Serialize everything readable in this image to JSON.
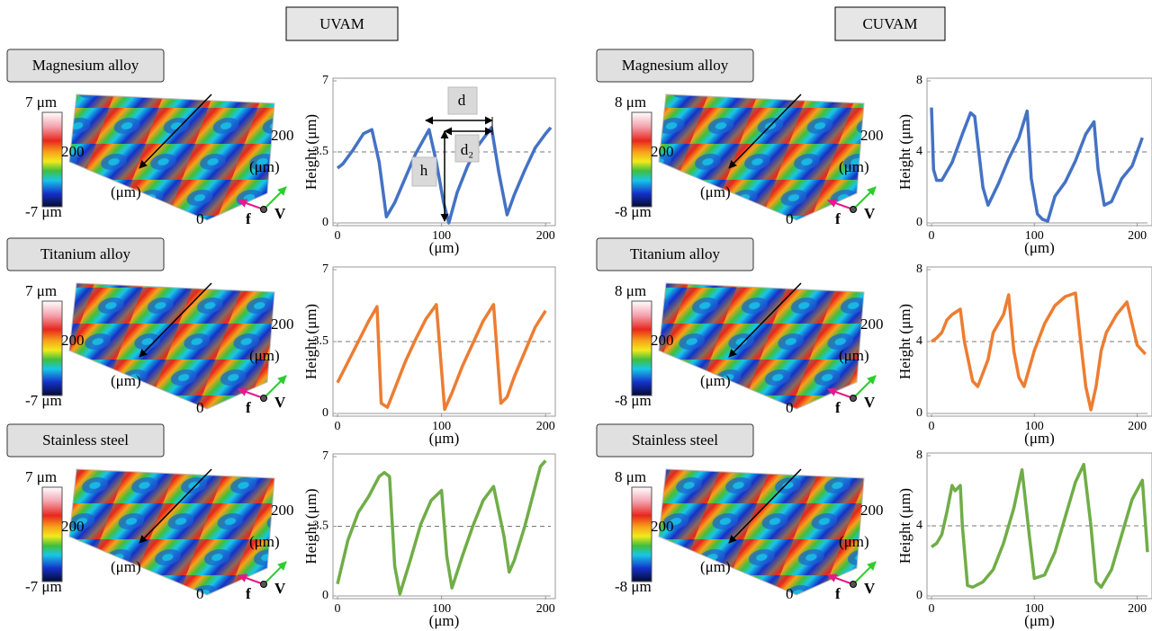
{
  "headers": [
    "UVAM",
    "CUVAM"
  ],
  "surfaces": [
    {
      "label": "Magnesium alloy",
      "scale_max": "7 μm",
      "scale_mid": "200",
      "scale_min": "-7 μm",
      "axis_unit": "(μm)",
      "axis_side": "200",
      "axis_side_unit": "(μm)",
      "axis_zero": "0",
      "f": "f",
      "v": "V"
    },
    {
      "label": "Titanium alloy",
      "scale_max": "7 μm",
      "scale_mid": "200",
      "scale_min": "-7 μm",
      "axis_unit": "(μm)",
      "axis_side": "200",
      "axis_side_unit": "(μm)",
      "axis_zero": "0",
      "f": "f",
      "v": "V"
    },
    {
      "label": "Stainless steel",
      "scale_max": "7 μm",
      "scale_mid": "200",
      "scale_min": "-7 μm",
      "axis_unit": "(μm)",
      "axis_side": "200",
      "axis_side_unit": "(μm)",
      "axis_zero": "0",
      "f": "f",
      "v": "V"
    },
    {
      "label": "Magnesium alloy",
      "scale_max": "8 μm",
      "scale_mid": "200",
      "scale_min": "-8 μm",
      "axis_unit": "(μm)",
      "axis_side": "200",
      "axis_side_unit": "(μm)",
      "axis_zero": "0",
      "f": "f",
      "v": "V"
    },
    {
      "label": "Titanium alloy",
      "scale_max": "8 μm",
      "scale_mid": "200",
      "scale_min": "-8 μm",
      "axis_unit": "(μm)",
      "axis_side": "200",
      "axis_side_unit": "(μm)",
      "axis_zero": "0",
      "f": "f",
      "v": "V"
    },
    {
      "label": "Stainless steel",
      "scale_max": "8 μm",
      "scale_mid": "200",
      "scale_min": "-8 μm",
      "axis_unit": "(μm)",
      "axis_side": "200",
      "axis_side_unit": "(μm)",
      "axis_zero": "0",
      "f": "f",
      "v": "V"
    }
  ],
  "chart_data": [
    {
      "type": "line",
      "xlabel": "(μm)",
      "ylabel": "Height (μm)",
      "xlim": [
        0,
        205
      ],
      "xticks": [
        0,
        100,
        200
      ],
      "ylim": [
        0,
        7
      ],
      "yticks": [
        0,
        3.5,
        7
      ],
      "hline": 3.5,
      "annotations": [
        "d",
        "d₂",
        "h"
      ],
      "series": [
        {
          "color": "#4472c4",
          "x": [
            0,
            5,
            15,
            25,
            33,
            40,
            47,
            55,
            65,
            75,
            88,
            95,
            102,
            107,
            115,
            125,
            135,
            148,
            155,
            163,
            170,
            180,
            190,
            200,
            205
          ],
          "values": [
            2.7,
            2.9,
            3.6,
            4.4,
            4.6,
            3.0,
            0.3,
            1.0,
            2.2,
            3.4,
            4.6,
            3.0,
            1.0,
            0,
            1.5,
            2.8,
            3.8,
            4.7,
            2.5,
            0.4,
            1.4,
            2.6,
            3.7,
            4.4,
            4.7
          ]
        }
      ]
    },
    {
      "type": "line",
      "xlabel": "(μm)",
      "ylabel": "Height (μm)",
      "xlim": [
        0,
        205
      ],
      "xticks": [
        0,
        100,
        200
      ],
      "ylim": [
        0,
        7
      ],
      "yticks": [
        0,
        3.5,
        7
      ],
      "hline": 3.5,
      "series": [
        {
          "color": "#ed7d31",
          "x": [
            0,
            10,
            20,
            30,
            38,
            42,
            48,
            55,
            65,
            75,
            85,
            95,
            103,
            110,
            120,
            130,
            140,
            150,
            157,
            163,
            170,
            180,
            190,
            200
          ],
          "values": [
            1.5,
            2.5,
            3.5,
            4.5,
            5.2,
            0.5,
            0.3,
            1.2,
            2.5,
            3.6,
            4.6,
            5.3,
            0.2,
            1.0,
            2.3,
            3.4,
            4.5,
            5.3,
            0.5,
            0.8,
            1.8,
            3.0,
            4.2,
            5.0
          ]
        }
      ]
    },
    {
      "type": "line",
      "xlabel": "(μm)",
      "ylabel": "Height (μm)",
      "xlim": [
        0,
        205
      ],
      "xticks": [
        0,
        100,
        200
      ],
      "ylim": [
        0,
        7
      ],
      "yticks": [
        0,
        3.5,
        7
      ],
      "hline": 3.5,
      "series": [
        {
          "color": "#70ad47",
          "x": [
            0,
            10,
            20,
            30,
            40,
            45,
            50,
            55,
            60,
            70,
            80,
            90,
            100,
            105,
            110,
            120,
            130,
            140,
            150,
            160,
            165,
            170,
            180,
            190,
            195,
            200
          ],
          "values": [
            0.6,
            2.8,
            4.2,
            5.0,
            6.0,
            6.2,
            6.0,
            1.5,
            0.1,
            1.8,
            3.6,
            4.8,
            5.3,
            2.0,
            0.4,
            2.0,
            3.5,
            4.8,
            5.5,
            3.0,
            1.2,
            1.8,
            3.5,
            5.5,
            6.5,
            6.8
          ]
        }
      ]
    },
    {
      "type": "line",
      "xlabel": "(μm)",
      "ylabel": "Height (μm)",
      "xlim": [
        0,
        210
      ],
      "xticks": [
        0,
        100,
        200
      ],
      "ylim": [
        0,
        8
      ],
      "yticks": [
        0,
        4,
        8
      ],
      "hline": 4,
      "series": [
        {
          "color": "#4472c4",
          "x": [
            0,
            2,
            5,
            10,
            20,
            30,
            38,
            42,
            50,
            55,
            65,
            75,
            85,
            93,
            97,
            103,
            108,
            113,
            120,
            130,
            140,
            150,
            158,
            162,
            168,
            175,
            185,
            195,
            205
          ],
          "values": [
            6.5,
            3,
            2.4,
            2.4,
            3.4,
            5.0,
            6.2,
            6.0,
            2.0,
            1.0,
            2.2,
            3.6,
            4.8,
            6.3,
            2.5,
            0.5,
            0.2,
            0.1,
            1.5,
            2.3,
            3.5,
            5.0,
            5.7,
            3.0,
            1.0,
            1.2,
            2.5,
            3.2,
            4.8
          ]
        }
      ]
    },
    {
      "type": "line",
      "xlabel": "(μm)",
      "ylabel": "Height (μm)",
      "xlim": [
        0,
        210
      ],
      "xticks": [
        0,
        100,
        200
      ],
      "ylim": [
        0,
        8
      ],
      "yticks": [
        0,
        4,
        8
      ],
      "hline": 4,
      "series": [
        {
          "color": "#ed7d31",
          "x": [
            0,
            5,
            10,
            15,
            20,
            28,
            32,
            40,
            45,
            55,
            60,
            65,
            70,
            75,
            80,
            85,
            90,
            95,
            100,
            110,
            120,
            130,
            140,
            145,
            150,
            155,
            160,
            165,
            170,
            180,
            190,
            195,
            200,
            208
          ],
          "values": [
            4.0,
            4.2,
            4.5,
            5.2,
            5.5,
            5.8,
            4.0,
            1.8,
            1.5,
            3.0,
            4.5,
            5.0,
            5.5,
            6.6,
            3.5,
            2.0,
            1.5,
            2.5,
            3.5,
            5.0,
            6.0,
            6.5,
            6.7,
            4.0,
            1.5,
            0.2,
            1.5,
            3.5,
            4.5,
            5.5,
            6.2,
            5.0,
            3.8,
            3.3
          ]
        }
      ]
    },
    {
      "type": "line",
      "xlabel": "(μm)",
      "ylabel": "Height (μm)",
      "xlim": [
        0,
        210
      ],
      "xticks": [
        0,
        100,
        200
      ],
      "ylim": [
        0,
        8
      ],
      "yticks": [
        0,
        4,
        8
      ],
      "hline": 4,
      "series": [
        {
          "color": "#70ad47",
          "x": [
            0,
            5,
            10,
            15,
            20,
            23,
            28,
            30,
            35,
            40,
            50,
            60,
            70,
            80,
            88,
            95,
            100,
            110,
            120,
            130,
            140,
            148,
            155,
            160,
            165,
            175,
            185,
            195,
            205,
            210
          ],
          "values": [
            2.8,
            3,
            3.5,
            4.8,
            6.3,
            6.0,
            6.3,
            4.0,
            0.6,
            0.5,
            0.8,
            1.5,
            3.0,
            5.0,
            7.2,
            3.5,
            1.0,
            1.2,
            2.5,
            4.5,
            6.5,
            7.5,
            4.0,
            0.8,
            0.5,
            1.5,
            3.5,
            5.5,
            6.6,
            2.5
          ]
        }
      ]
    }
  ]
}
